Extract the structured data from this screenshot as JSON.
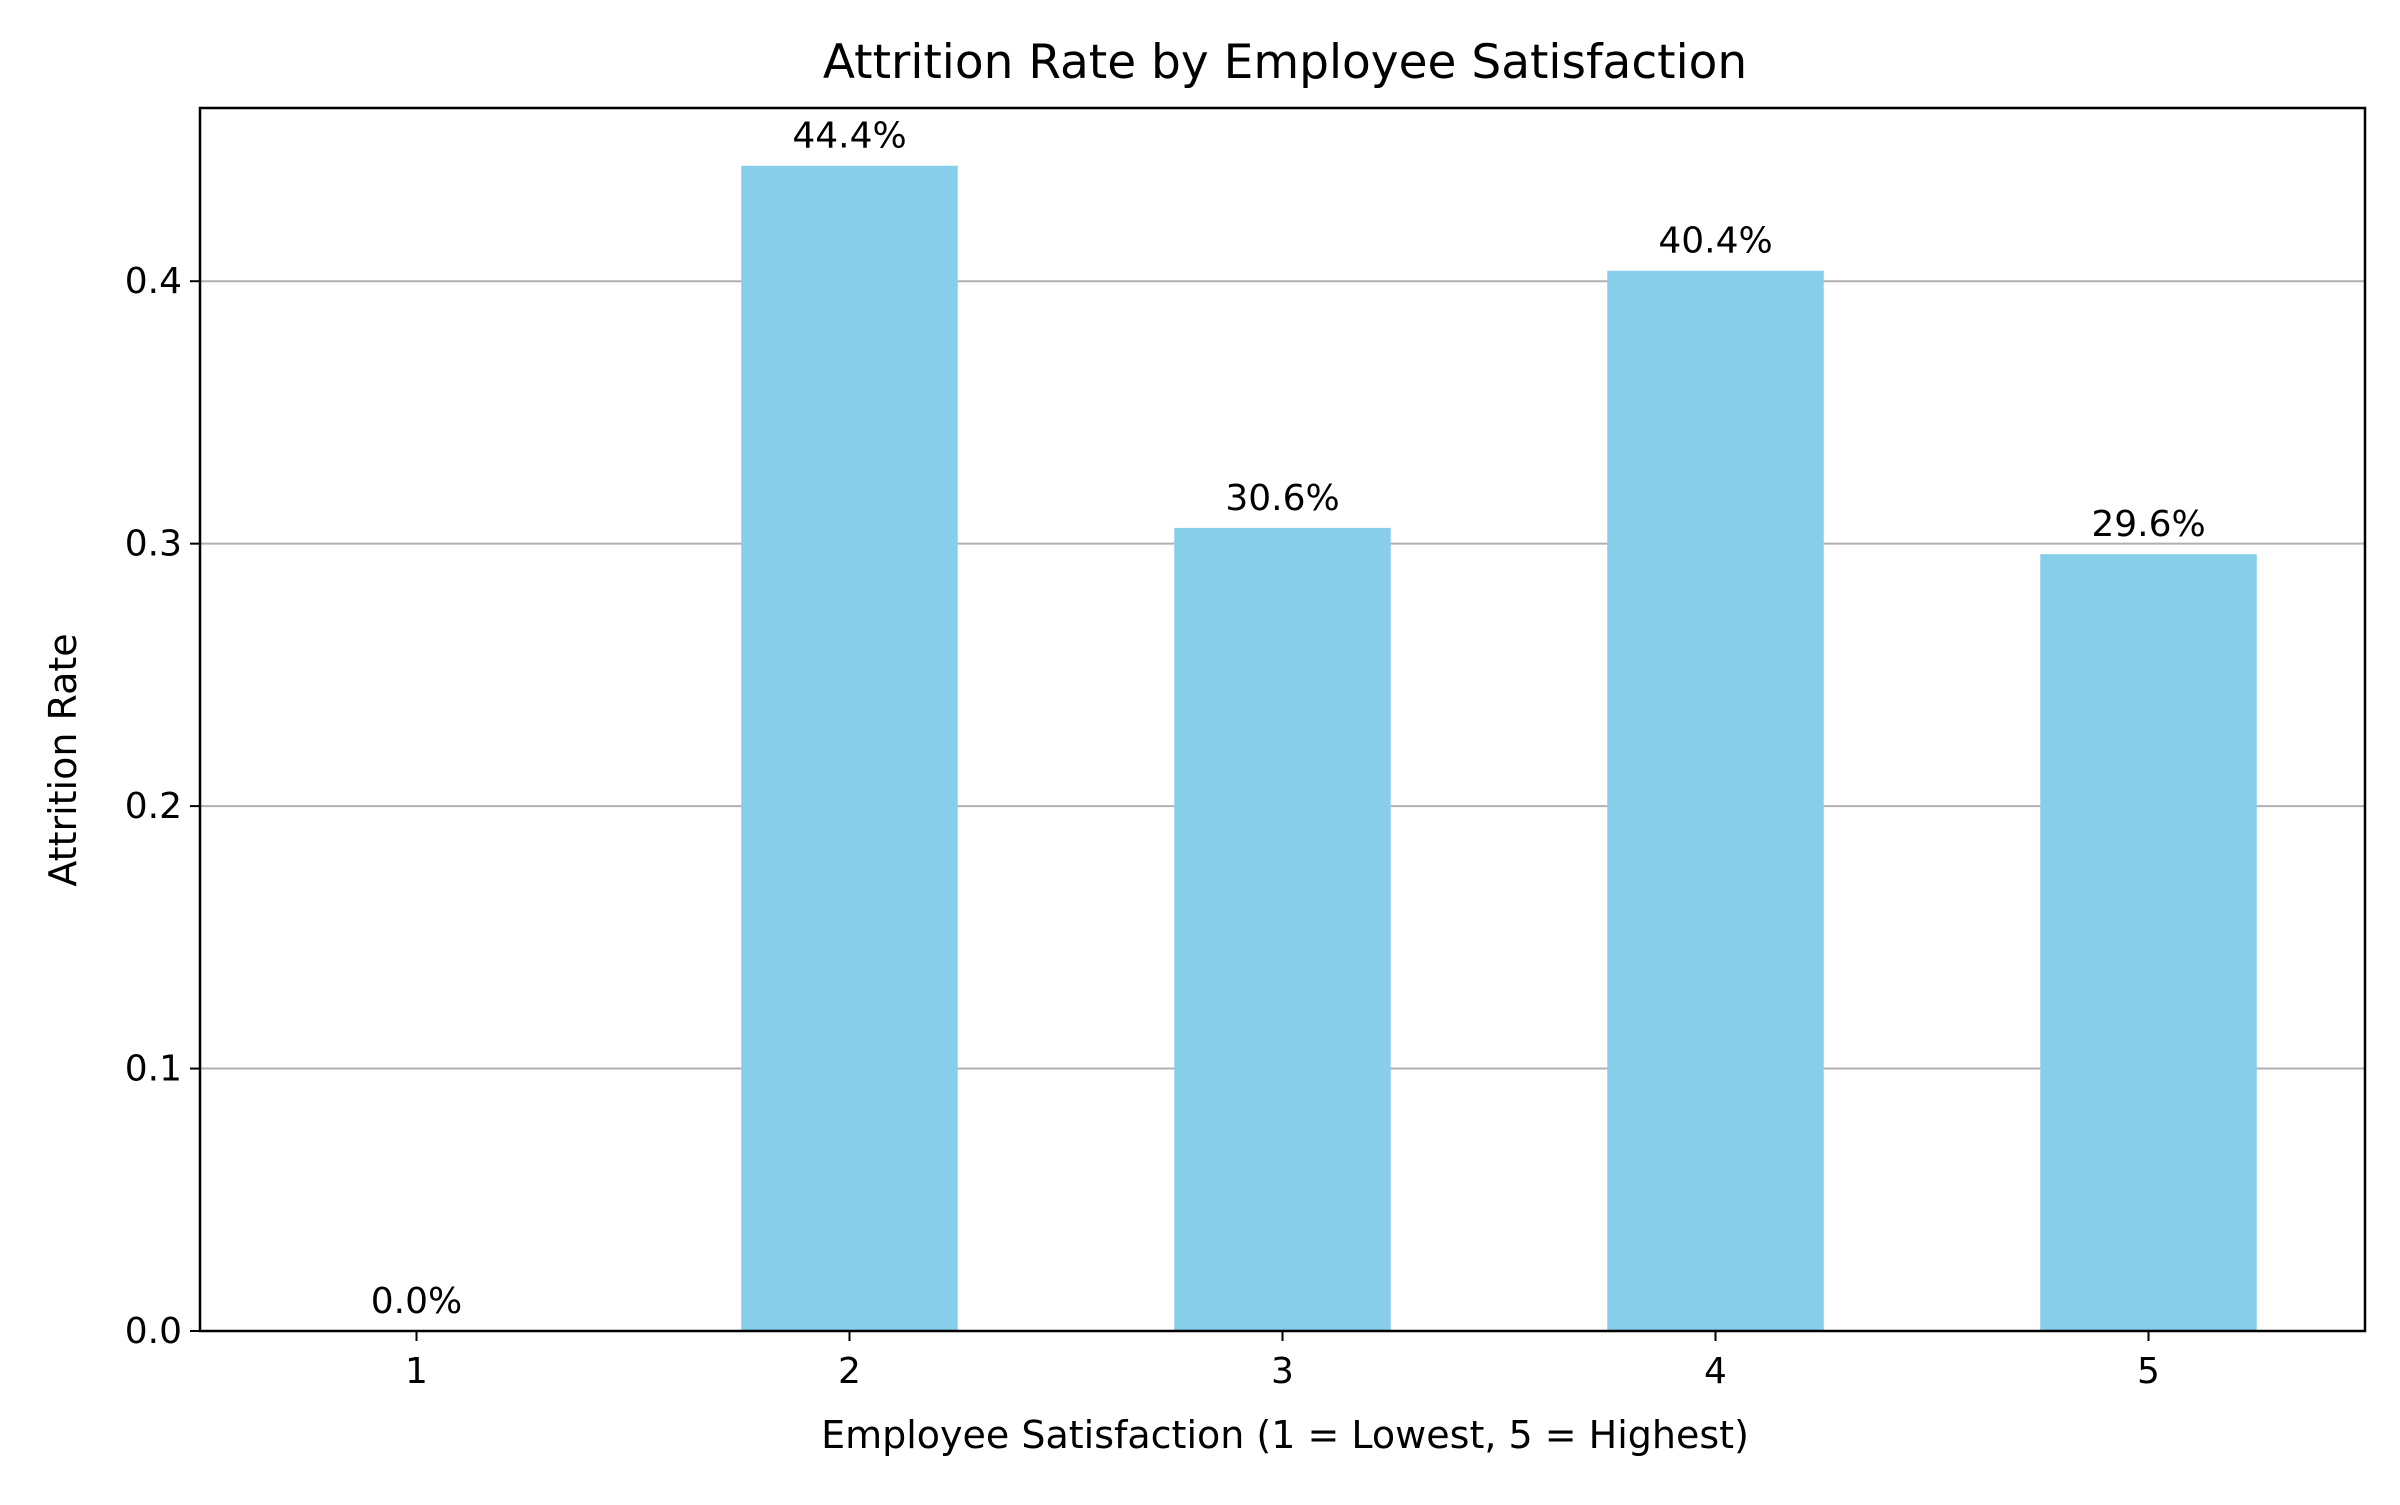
{
  "chart_data": {
    "type": "bar",
    "title": "Attrition Rate by Employee Satisfaction",
    "xlabel": "Employee Satisfaction (1 = Lowest, 5 = Highest)",
    "ylabel": "Attrition Rate",
    "categories": [
      "1",
      "2",
      "3",
      "4",
      "5"
    ],
    "values": [
      0.0,
      0.444,
      0.306,
      0.404,
      0.296
    ],
    "data_labels": [
      "0.0%",
      "44.4%",
      "30.6%",
      "40.4%",
      "29.6%"
    ],
    "ylim": [
      0,
      0.466
    ],
    "yticks": [
      0.0,
      0.1,
      0.2,
      0.3,
      0.4
    ],
    "ytick_labels": [
      "0.0",
      "0.1",
      "0.2",
      "0.3",
      "0.4"
    ],
    "grid": "horizontal",
    "bar_color": "#87CEEB"
  }
}
